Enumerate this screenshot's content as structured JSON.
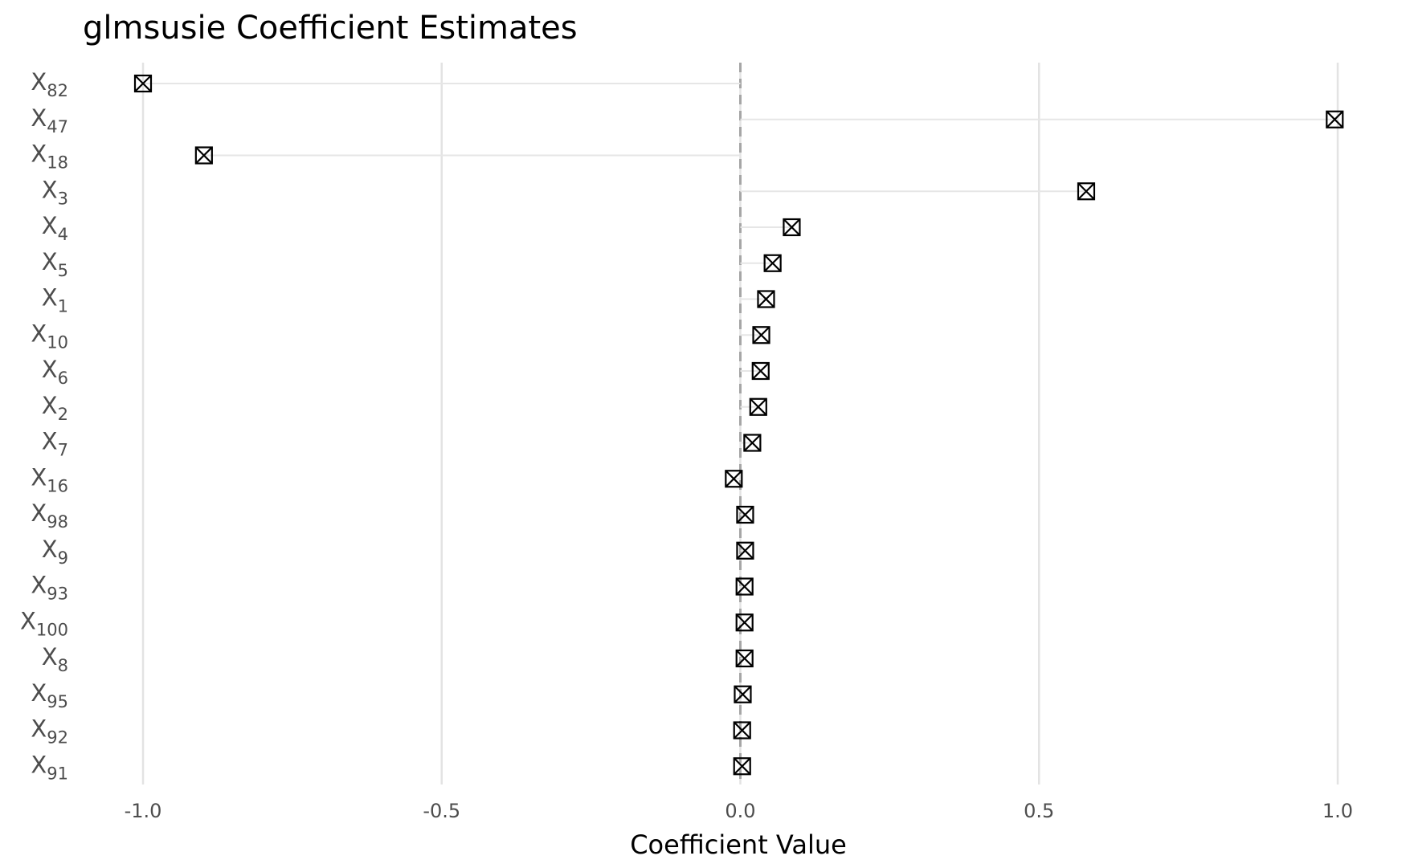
{
  "chart_data": {
    "type": "scatter",
    "title": "glmsusie Coefficient Estimates",
    "xlabel": "Coefficient Value",
    "ylabel": "",
    "xlim": [
      -1.1,
      1.05
    ],
    "xticks": [
      -1.0,
      -0.5,
      0.0,
      0.5,
      1.0
    ],
    "xtick_labels": [
      "-1.0",
      "-0.5",
      "0.0",
      "0.5",
      "1.0"
    ],
    "grid": true,
    "reference_line": 0.0,
    "marker": "boxed-x",
    "colors": {
      "marker": "#000000",
      "segment": "#e6e6e6",
      "grid": "#e3e3e3",
      "reference": "#a6a6a6",
      "tick_text": "#4d4d4d"
    },
    "points": [
      {
        "base": "X",
        "sub": "82",
        "value": -1.0
      },
      {
        "base": "X",
        "sub": "47",
        "value": 0.995
      },
      {
        "base": "X",
        "sub": "18",
        "value": -0.898
      },
      {
        "base": "X",
        "sub": "3",
        "value": 0.579
      },
      {
        "base": "X",
        "sub": "4",
        "value": 0.086
      },
      {
        "base": "X",
        "sub": "5",
        "value": 0.054
      },
      {
        "base": "X",
        "sub": "1",
        "value": 0.043
      },
      {
        "base": "X",
        "sub": "10",
        "value": 0.035
      },
      {
        "base": "X",
        "sub": "6",
        "value": 0.034
      },
      {
        "base": "X",
        "sub": "2",
        "value": 0.03
      },
      {
        "base": "X",
        "sub": "7",
        "value": 0.02
      },
      {
        "base": "X",
        "sub": "16",
        "value": -0.011
      },
      {
        "base": "X",
        "sub": "98",
        "value": 0.008
      },
      {
        "base": "X",
        "sub": "9",
        "value": 0.008
      },
      {
        "base": "X",
        "sub": "93",
        "value": 0.007
      },
      {
        "base": "X",
        "sub": "100",
        "value": 0.007
      },
      {
        "base": "X",
        "sub": "8",
        "value": 0.007
      },
      {
        "base": "X",
        "sub": "95",
        "value": 0.004
      },
      {
        "base": "X",
        "sub": "92",
        "value": 0.003
      },
      {
        "base": "X",
        "sub": "91",
        "value": 0.003
      }
    ]
  }
}
